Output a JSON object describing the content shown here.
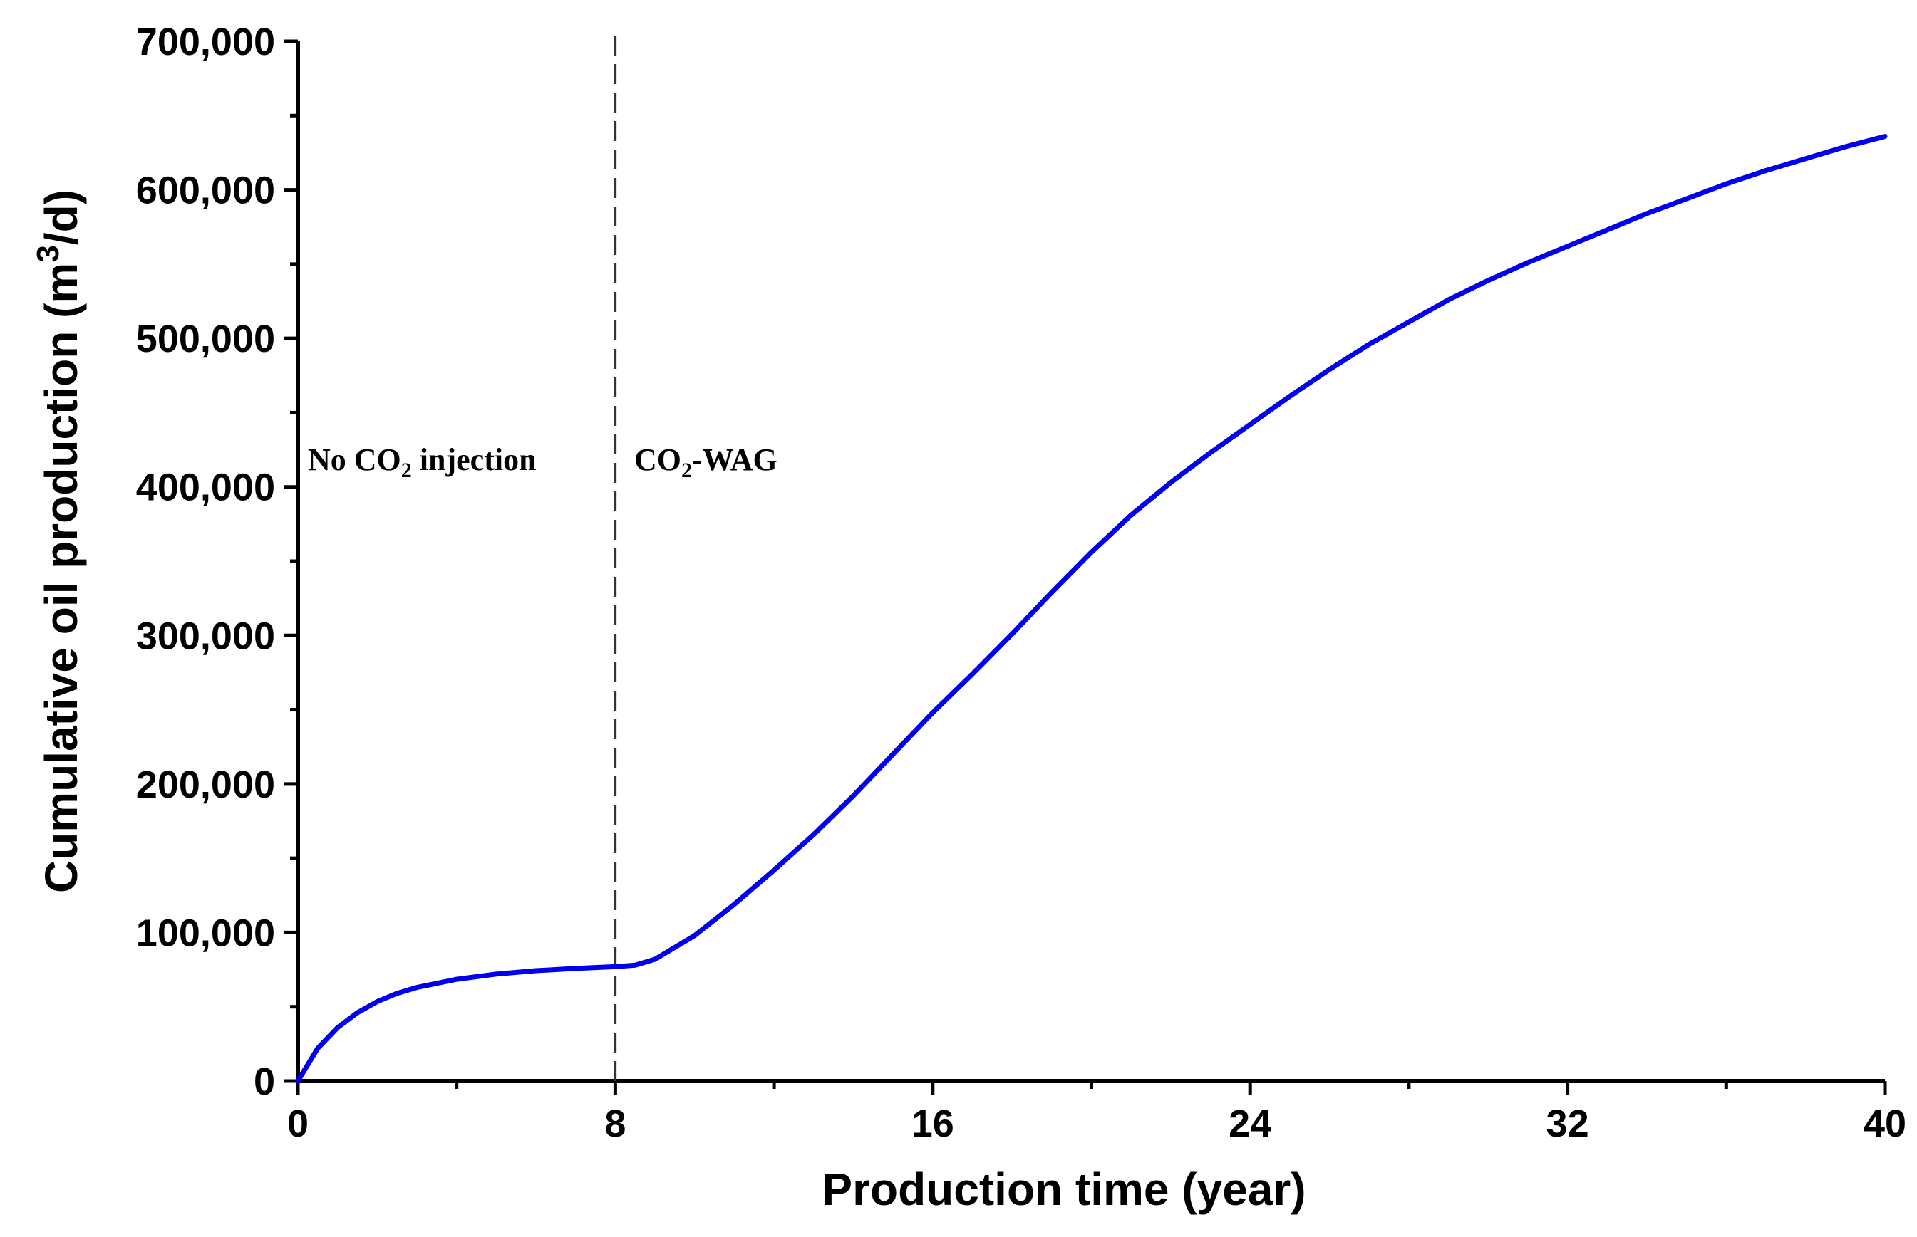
{
  "chart_data": {
    "type": "line",
    "title": "",
    "xlabel": "Production time (year)",
    "ylabel": {
      "main": "Cumulative oil production (m",
      "sup": "3",
      "tail": "/d)"
    },
    "xlim": [
      0,
      40
    ],
    "ylim": [
      0,
      700000
    ],
    "x_ticks": [
      0,
      8,
      16,
      24,
      32,
      40
    ],
    "x_tick_labels": [
      "0",
      "8",
      "16",
      "24",
      "32",
      "40"
    ],
    "y_ticks": [
      0,
      100000,
      200000,
      300000,
      400000,
      500000,
      600000,
      700000
    ],
    "y_tick_labels": [
      "0",
      "100,000",
      "200,000",
      "300,000",
      "400,000",
      "500,000",
      "600,000",
      "700,000"
    ],
    "grid": false,
    "line_color": "#0000ee",
    "divider_x": 8,
    "annotations": {
      "left": {
        "pre": "No CO",
        "sub": "2",
        "post": " injection"
      },
      "right": {
        "pre": "CO",
        "sub": "2",
        "post": "-WAG"
      }
    },
    "series": [
      {
        "x": [
          0,
          0.5,
          1,
          1.5,
          2,
          2.5,
          3,
          4,
          5,
          6,
          7,
          8,
          8.5,
          9,
          10,
          11,
          12,
          13,
          14,
          15,
          16,
          17,
          18,
          19,
          20,
          21,
          22,
          23,
          24,
          25,
          26,
          27,
          28,
          29,
          30,
          31,
          32,
          33,
          34,
          35,
          36,
          37,
          38,
          39,
          40
        ],
        "values": [
          0,
          22000,
          36000,
          46000,
          53500,
          59000,
          63000,
          68500,
          72000,
          74300,
          75800,
          77000,
          78000,
          82000,
          98000,
          119000,
          142000,
          166000,
          192000,
          220000,
          248000,
          274000,
          301000,
          329000,
          356000,
          381000,
          403000,
          423000,
          442000,
          461000,
          479000,
          496000,
          511000,
          526000,
          539000,
          551000,
          562000,
          573000,
          584000,
          594000,
          604000,
          613000,
          621000,
          629000,
          636000
        ]
      }
    ]
  }
}
